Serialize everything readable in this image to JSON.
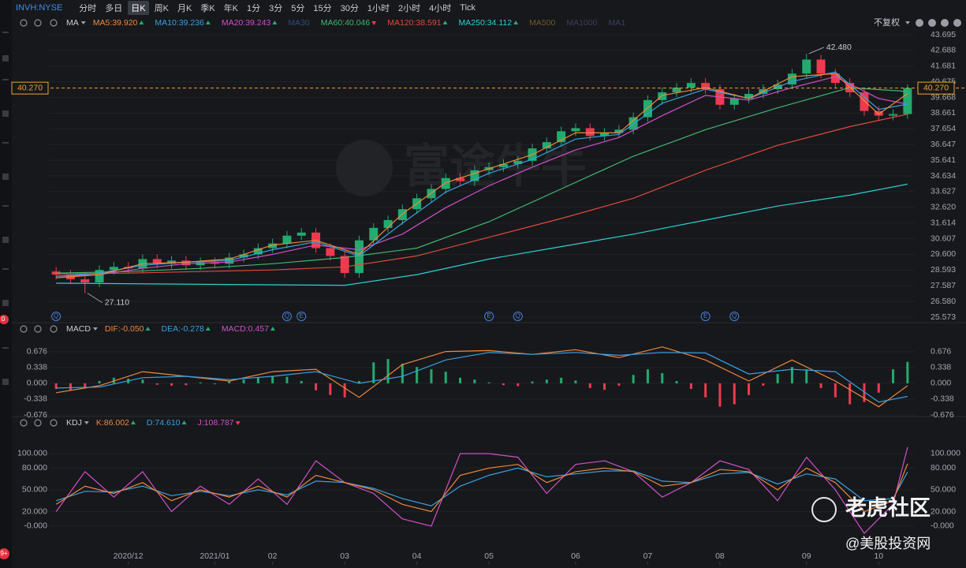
{
  "toolbar": {
    "symbol": "INVH:NYSE",
    "intervals": [
      "分时",
      "多日",
      "日K",
      "周K",
      "月K",
      "季K",
      "年K",
      "1分",
      "3分",
      "5分",
      "15分",
      "30分",
      "1小时",
      "2小时",
      "4小时",
      "Tick"
    ],
    "selected_index": 2
  },
  "adjust_label": "不复权",
  "watermark": "富途牛牛",
  "overlay": {
    "title": "老虎社区",
    "handle": "@美股投资网"
  },
  "sidebar_badges": [
    "0",
    "9+"
  ],
  "chart_data": [
    {
      "type": "candlestick",
      "indicator": "MA",
      "legend": [
        {
          "text": "MA5:39.920",
          "color": "#f0883a",
          "trend": "up"
        },
        {
          "text": "MA10:39.236",
          "color": "#3aa0e0",
          "trend": "up"
        },
        {
          "text": "MA20:39.243",
          "color": "#d050c8",
          "trend": "up"
        },
        {
          "text": "MA30",
          "color": "#2f4a78"
        },
        {
          "text": "MA60:40.046",
          "color": "#3fb870",
          "trend": "down"
        },
        {
          "text": "MA120:38.591",
          "color": "#e04a3a",
          "trend": "up"
        },
        {
          "text": "MA250:34.112",
          "color": "#2ad0d0",
          "trend": "up"
        },
        {
          "text": "MA500",
          "color": "#6a5a2c"
        },
        {
          "text": "MA1000",
          "color": "#3b3f5a"
        },
        {
          "text": "MA1",
          "color": "#3b3f5a"
        }
      ],
      "up_color": "#22ab6e",
      "down_color": "#ee3a4f",
      "xlim": [
        -0.5,
        59.5
      ],
      "ylim": [
        25.573,
        43.695
      ],
      "yticks": [
        43.695,
        42.688,
        41.681,
        40.675,
        39.668,
        38.661,
        37.654,
        36.647,
        35.641,
        34.634,
        33.627,
        {
          "value": 32.62,
          "label": "32.620"
        },
        31.614,
        30.607,
        {
          "value": 29.6,
          "label": "29.600"
        },
        28.593,
        27.587,
        {
          "value": 26.58,
          "label": "26.580"
        },
        25.573
      ],
      "tick_sides": [
        "right"
      ],
      "grid": true,
      "xticks": [
        {
          "value": 5,
          "label": "2020/12"
        },
        {
          "value": 11,
          "label": "2021/01"
        },
        {
          "value": 15,
          "label": "02"
        },
        {
          "value": 20,
          "label": "03"
        },
        {
          "value": 25,
          "label": "04"
        },
        {
          "value": 30,
          "label": "05"
        },
        {
          "value": 36,
          "label": "06"
        },
        {
          "value": 41,
          "label": "07"
        },
        {
          "value": 46,
          "label": "08"
        },
        {
          "value": 52,
          "label": "09"
        },
        {
          "value": 57,
          "label": "10"
        }
      ],
      "open": [
        28.5,
        28.3,
        28.0,
        27.8,
        28.6,
        28.8,
        28.7,
        29.3,
        29.0,
        29.2,
        28.9,
        29.1,
        29.0,
        29.4,
        29.6,
        30.0,
        30.3,
        30.8,
        31.0,
        30.0,
        29.5,
        28.4,
        30.5,
        31.3,
        31.8,
        32.5,
        33.2,
        33.8,
        34.5,
        34.3,
        35.0,
        35.2,
        35.4,
        35.6,
        36.4,
        36.8,
        37.5,
        37.7,
        37.2,
        37.4,
        37.6,
        38.4,
        39.5,
        40.0,
        40.3,
        40.6,
        40.2,
        39.2,
        39.6,
        39.9,
        40.2,
        40.5,
        41.2,
        42.1,
        41.2,
        40.6,
        40.0,
        38.8,
        38.5,
        38.6
      ],
      "high": [
        28.8,
        28.6,
        28.3,
        28.9,
        29.1,
        29.1,
        29.6,
        29.6,
        29.5,
        29.5,
        29.4,
        29.4,
        29.7,
        29.9,
        30.3,
        30.6,
        31.1,
        31.3,
        31.3,
        30.3,
        29.8,
        30.8,
        31.6,
        32.1,
        32.8,
        33.5,
        34.1,
        34.8,
        34.8,
        35.3,
        35.5,
        35.7,
        35.9,
        36.7,
        37.1,
        37.8,
        38.0,
        38.0,
        37.7,
        37.9,
        38.7,
        39.8,
        40.3,
        40.6,
        40.9,
        40.9,
        40.5,
        39.9,
        40.2,
        40.5,
        40.8,
        41.5,
        42.48,
        42.4,
        41.5,
        40.9,
        40.3,
        39.1,
        38.9,
        40.5
      ],
      "low": [
        28.0,
        27.7,
        27.11,
        27.5,
        28.3,
        28.4,
        28.4,
        28.7,
        28.7,
        28.6,
        28.6,
        28.7,
        28.7,
        29.1,
        29.3,
        29.7,
        30.0,
        30.5,
        29.7,
        29.2,
        28.1,
        28.1,
        30.2,
        31.0,
        31.5,
        32.2,
        32.9,
        33.5,
        34.0,
        34.0,
        34.7,
        34.9,
        35.1,
        35.3,
        36.1,
        36.5,
        37.2,
        36.9,
        36.9,
        37.1,
        37.3,
        38.1,
        39.2,
        39.7,
        40.0,
        39.9,
        38.9,
        38.9,
        39.3,
        39.6,
        39.9,
        40.2,
        40.9,
        40.9,
        40.3,
        39.7,
        38.5,
        38.2,
        38.2,
        38.3
      ],
      "close": [
        28.3,
        28.0,
        27.8,
        28.6,
        28.8,
        28.7,
        29.3,
        29.0,
        29.2,
        28.9,
        29.1,
        29.0,
        29.4,
        29.6,
        30.0,
        30.3,
        30.8,
        31.0,
        30.0,
        29.5,
        28.4,
        30.5,
        31.3,
        31.8,
        32.5,
        33.2,
        33.8,
        34.5,
        34.3,
        35.0,
        35.2,
        35.4,
        35.6,
        36.4,
        36.8,
        37.5,
        37.7,
        37.2,
        37.4,
        37.6,
        38.4,
        39.5,
        40.0,
        40.3,
        40.6,
        40.2,
        39.2,
        39.6,
        39.9,
        40.2,
        40.5,
        41.2,
        42.1,
        41.2,
        40.6,
        40.0,
        38.8,
        38.5,
        38.6,
        40.27
      ],
      "series": [
        {
          "name": "MA250",
          "color": "#2ad0d0",
          "x": [
            0,
            5,
            10,
            15,
            20,
            25,
            30,
            35,
            40,
            45,
            50,
            55,
            59
          ],
          "values": [
            27.75,
            27.72,
            27.68,
            27.65,
            27.62,
            28.3,
            29.3,
            30.1,
            30.9,
            31.8,
            32.7,
            33.4,
            34.11
          ]
        },
        {
          "name": "MA120",
          "color": "#e04a3a",
          "x": [
            0,
            5,
            10,
            15,
            20,
            25,
            30,
            35,
            40,
            45,
            50,
            55,
            59
          ],
          "values": [
            28.35,
            28.4,
            28.5,
            28.6,
            28.8,
            29.5,
            30.7,
            31.9,
            33.2,
            35.0,
            36.6,
            37.8,
            38.59
          ]
        },
        {
          "name": "MA60",
          "color": "#3fb870",
          "x": [
            0,
            5,
            10,
            15,
            20,
            25,
            30,
            35,
            40,
            45,
            50,
            55,
            59
          ],
          "values": [
            28.4,
            28.5,
            28.7,
            29.0,
            29.4,
            30.0,
            31.7,
            33.8,
            35.9,
            37.6,
            39.0,
            40.3,
            40.05
          ]
        },
        {
          "name": "MA20",
          "color": "#d050c8",
          "x": [
            0,
            3,
            6,
            9,
            12,
            15,
            18,
            21,
            24,
            27,
            30,
            33,
            36,
            39,
            42,
            45,
            48,
            51,
            54,
            57,
            59
          ],
          "values": [
            28.2,
            28.3,
            28.7,
            29.0,
            29.1,
            29.6,
            30.2,
            29.9,
            30.9,
            32.6,
            34.0,
            35.2,
            36.3,
            37.1,
            38.5,
            39.8,
            39.5,
            40.3,
            41.0,
            39.6,
            39.24
          ]
        },
        {
          "name": "MA10",
          "color": "#3aa0e0",
          "x": [
            0,
            3,
            6,
            9,
            12,
            15,
            18,
            21,
            24,
            27,
            30,
            33,
            36,
            39,
            42,
            45,
            48,
            51,
            54,
            57,
            59
          ],
          "values": [
            28.2,
            28.4,
            28.9,
            29.1,
            29.2,
            29.9,
            30.4,
            29.5,
            31.6,
            33.6,
            34.8,
            35.7,
            37.0,
            37.3,
            39.3,
            40.2,
            39.6,
            40.7,
            41.3,
            38.9,
            39.24
          ]
        },
        {
          "name": "MA5",
          "color": "#f0883a",
          "x": [
            0,
            3,
            6,
            9,
            12,
            15,
            18,
            21,
            24,
            27,
            30,
            33,
            36,
            39,
            42,
            45,
            48,
            51,
            54,
            57,
            59
          ],
          "values": [
            28.1,
            28.3,
            29.0,
            29.1,
            29.3,
            30.2,
            30.5,
            29.6,
            32.2,
            34.2,
            35.1,
            36.0,
            37.4,
            37.4,
            39.8,
            40.3,
            39.6,
            41.0,
            41.2,
            38.6,
            39.92
          ]
        }
      ],
      "price_line": {
        "value": 40.27,
        "label": "40.270",
        "color": "#f0a030"
      },
      "annotations": [
        {
          "x": 52,
          "value": 42.48,
          "label": "42.480"
        },
        {
          "x": 2,
          "value": 27.11,
          "label": "27.110"
        }
      ],
      "events": [
        {
          "label": "Q",
          "x": 0
        },
        {
          "label": "Q",
          "x": 16
        },
        {
          "label": "E",
          "x": 17
        },
        {
          "label": "E",
          "x": 30
        },
        {
          "label": "Q",
          "x": 32
        },
        {
          "label": "E",
          "x": 45
        },
        {
          "label": "Q",
          "x": 47
        }
      ]
    },
    {
      "type": "combo",
      "indicator": "MACD",
      "legend": [
        {
          "text": "DIF:-0.050",
          "color": "#f0883a",
          "trend": "up"
        },
        {
          "text": "DEA:-0.278",
          "color": "#3aa0e0",
          "trend": "up"
        },
        {
          "text": "MACD:0.457",
          "color": "#d050c8",
          "trend": "up"
        }
      ],
      "up_color": "#22ab6e",
      "down_color": "#ee3a4f",
      "xlim": [
        -0.5,
        59.5
      ],
      "ylim": [
        -0.71,
        0.91
      ],
      "yticks": [
        0.676,
        0.338,
        {
          "value": 0,
          "label": "0.000"
        },
        -0.338,
        -0.676
      ],
      "tick_sides": [
        "left",
        "right"
      ],
      "grid": true,
      "histogram": {
        "name": "MACD",
        "values": [
          -0.12,
          -0.15,
          -0.08,
          0.05,
          0.12,
          0.1,
          0.08,
          -0.03,
          -0.05,
          -0.04,
          0.02,
          -0.02,
          0.04,
          0.08,
          0.12,
          0.15,
          0.14,
          0.05,
          -0.15,
          -0.25,
          -0.3,
          0.05,
          0.45,
          0.52,
          0.42,
          0.35,
          0.3,
          0.25,
          0.12,
          0.08,
          0.02,
          -0.04,
          -0.06,
          0.04,
          0.08,
          0.12,
          0.06,
          -0.1,
          -0.14,
          -0.05,
          0.18,
          0.3,
          0.22,
          0.05,
          -0.12,
          -0.3,
          -0.5,
          -0.45,
          -0.25,
          -0.05,
          0.2,
          0.35,
          0.3,
          -0.1,
          -0.3,
          -0.45,
          -0.4,
          -0.2,
          0.3,
          0.46
        ]
      },
      "x": [
        0,
        3,
        6,
        9,
        12,
        15,
        18,
        21,
        24,
        27,
        30,
        33,
        36,
        39,
        42,
        45,
        48,
        51,
        54,
        57,
        59
      ],
      "series": [
        {
          "name": "DIF",
          "color": "#f0883a",
          "values": [
            -0.2,
            -0.05,
            0.25,
            0.15,
            0.05,
            0.25,
            0.3,
            -0.3,
            0.4,
            0.68,
            0.7,
            0.62,
            0.72,
            0.55,
            0.78,
            0.5,
            0.05,
            0.5,
            0.05,
            -0.5,
            -0.05
          ]
        },
        {
          "name": "DEA",
          "color": "#3aa0e0",
          "values": [
            -0.1,
            -0.08,
            0.12,
            0.15,
            0.08,
            0.15,
            0.25,
            0.0,
            0.15,
            0.5,
            0.66,
            0.62,
            0.66,
            0.6,
            0.66,
            0.65,
            0.2,
            0.3,
            0.25,
            -0.4,
            -0.28
          ]
        }
      ]
    },
    {
      "type": "line",
      "indicator": "KDJ",
      "legend": [
        {
          "text": "K:86.002",
          "color": "#f0883a",
          "trend": "up"
        },
        {
          "text": "D:74.610",
          "color": "#3aa0e0",
          "trend": "up"
        },
        {
          "text": "J:108.787",
          "color": "#d050c8",
          "trend": "down"
        }
      ],
      "up_color": "#22ab6e",
      "down_color": "#ee3a4f",
      "xlim": [
        -0.5,
        59.5
      ],
      "ylim": [
        -49,
        138
      ],
      "yticks": [
        {
          "value": 100,
          "label": "100.000"
        },
        {
          "value": 80,
          "label": "80.000"
        },
        {
          "value": 50,
          "label": "50.000"
        },
        {
          "value": 20,
          "label": "20.000"
        },
        {
          "value": 0,
          "label": "-0.000"
        }
      ],
      "tick_sides": [
        "left",
        "right"
      ],
      "grid": true,
      "x": [
        0,
        2,
        4,
        6,
        8,
        10,
        12,
        14,
        16,
        18,
        20,
        22,
        24,
        26,
        28,
        30,
        32,
        34,
        36,
        38,
        40,
        42,
        44,
        46,
        48,
        50,
        52,
        54,
        56,
        58,
        59
      ],
      "series": [
        {
          "name": "J",
          "color": "#d050c8",
          "values": [
            20,
            75,
            40,
            75,
            20,
            55,
            30,
            65,
            30,
            90,
            60,
            45,
            10,
            0,
            100,
            100,
            95,
            45,
            85,
            90,
            75,
            40,
            60,
            90,
            78,
            35,
            95,
            50,
            -10,
            30,
            108.787
          ]
        },
        {
          "name": "D",
          "color": "#3aa0e0",
          "values": [
            35,
            48,
            47,
            55,
            42,
            48,
            42,
            50,
            43,
            62,
            60,
            52,
            38,
            28,
            55,
            70,
            80,
            68,
            72,
            76,
            76,
            62,
            60,
            72,
            74,
            58,
            72,
            65,
            35,
            38,
            74.61
          ]
        },
        {
          "name": "K",
          "color": "#f0883a",
          "values": [
            30,
            55,
            45,
            60,
            35,
            50,
            40,
            55,
            40,
            70,
            60,
            50,
            30,
            20,
            70,
            80,
            85,
            60,
            75,
            80,
            75,
            55,
            60,
            78,
            75,
            50,
            80,
            60,
            20,
            35,
            86.002
          ]
        }
      ]
    }
  ]
}
